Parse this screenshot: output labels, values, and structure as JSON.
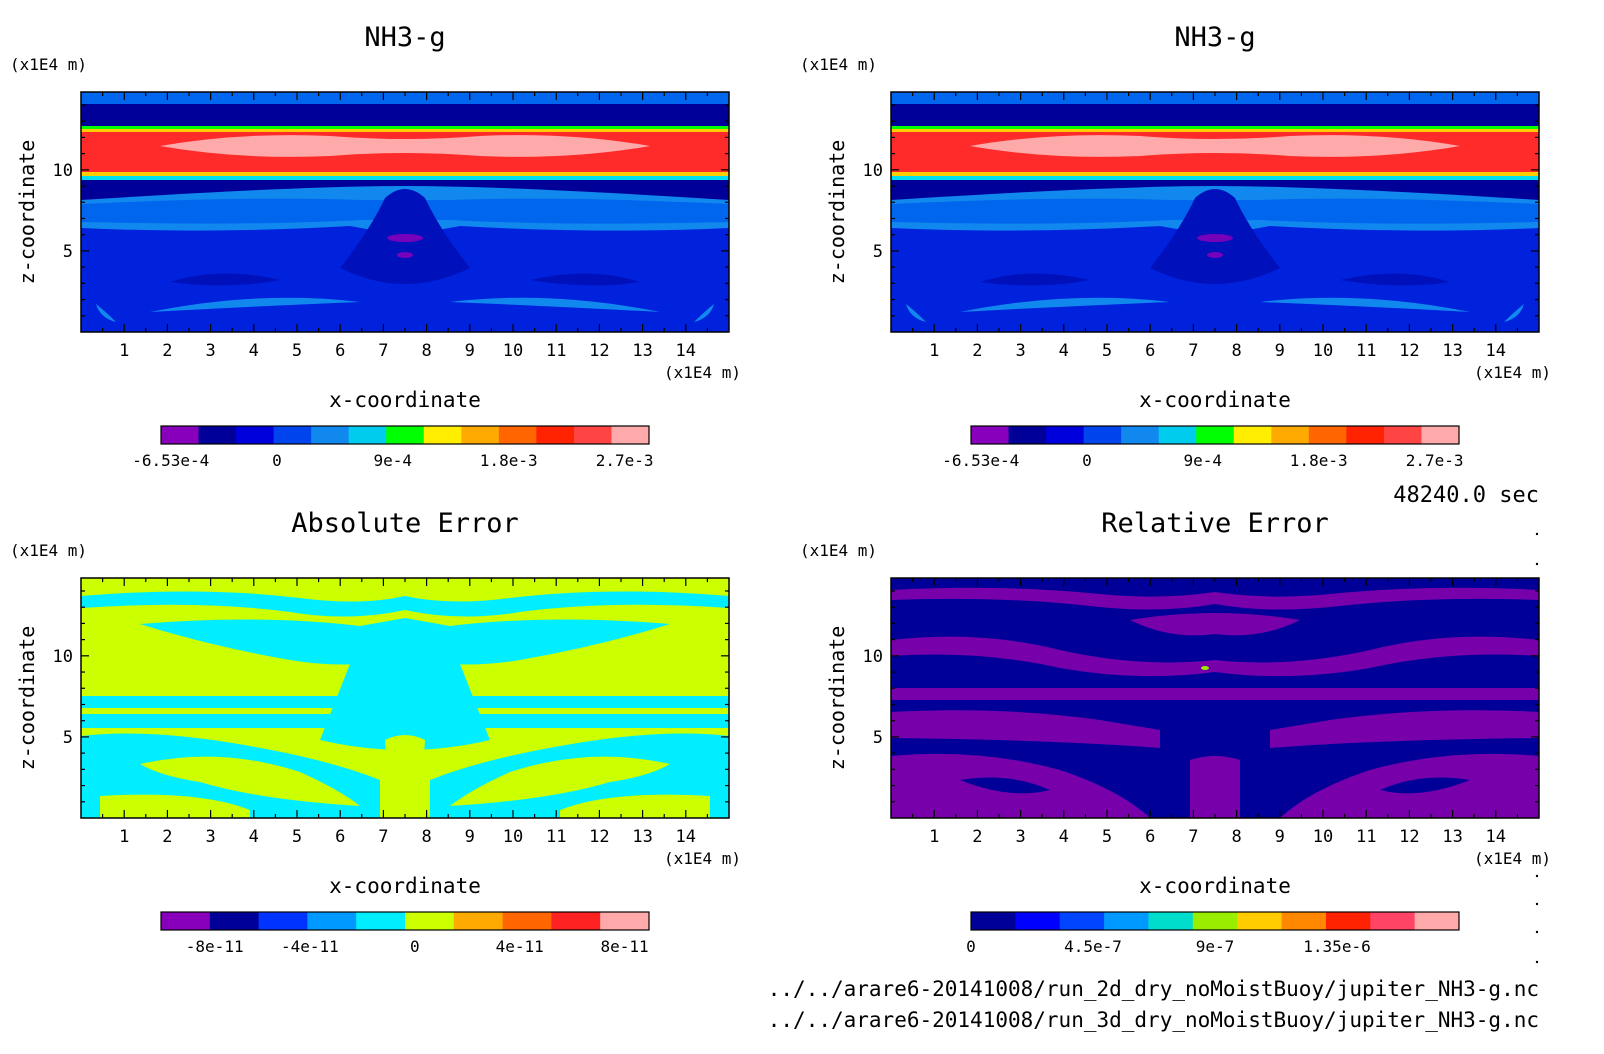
{
  "time_label": "48240.0 sec",
  "files": [
    "../../arare6-20141008/run_2d_dry_noMoistBuoy/jupiter_NH3-g.nc",
    "../../arare6-20141008/run_3d_dry_noMoistBuoy/jupiter_NH3-g.nc"
  ],
  "chart_data": [
    {
      "type": "heatmap",
      "title": "NH3-g",
      "xlabel": "x-coordinate",
      "ylabel": "z-coordinate",
      "x_unit": "(x1E4 m)",
      "y_unit": "(x1E4 m)",
      "xlim": [
        0,
        15
      ],
      "ylim": [
        0,
        14.8
      ],
      "x_ticks": [
        1,
        2,
        3,
        4,
        5,
        6,
        7,
        8,
        9,
        10,
        11,
        12,
        13,
        14
      ],
      "y_ticks": [
        5,
        10
      ],
      "colorbar": {
        "colors": [
          "#8800bb",
          "#000099",
          "#0000dd",
          "#0044ee",
          "#1188ee",
          "#00ccee",
          "#00ff00",
          "#ffee00",
          "#ffaa00",
          "#ff6600",
          "#ff2200",
          "#ff4444",
          "#ffaaaa"
        ],
        "tick_labels": [
          "-6.53e-4",
          "0",
          "9e-4",
          "1.8e-3",
          "2.7e-3"
        ]
      }
    },
    {
      "type": "heatmap",
      "title": "NH3-g",
      "xlabel": "x-coordinate",
      "ylabel": "z-coordinate",
      "x_unit": "(x1E4 m)",
      "y_unit": "(x1E4 m)",
      "xlim": [
        0,
        15
      ],
      "ylim": [
        0,
        14.8
      ],
      "x_ticks": [
        1,
        2,
        3,
        4,
        5,
        6,
        7,
        8,
        9,
        10,
        11,
        12,
        13,
        14
      ],
      "y_ticks": [
        5,
        10
      ],
      "colorbar": {
        "colors": [
          "#8800bb",
          "#000099",
          "#0000dd",
          "#0044ee",
          "#1188ee",
          "#00ccee",
          "#00ff00",
          "#ffee00",
          "#ffaa00",
          "#ff6600",
          "#ff2200",
          "#ff4444",
          "#ffaaaa"
        ],
        "tick_labels": [
          "-6.53e-4",
          "0",
          "9e-4",
          "1.8e-3",
          "2.7e-3"
        ]
      }
    },
    {
      "type": "heatmap",
      "title": "Absolute Error",
      "xlabel": "x-coordinate",
      "ylabel": "z-coordinate",
      "x_unit": "(x1E4 m)",
      "y_unit": "(x1E4 m)",
      "xlim": [
        0,
        15
      ],
      "ylim": [
        0,
        14.8
      ],
      "x_ticks": [
        1,
        2,
        3,
        4,
        5,
        6,
        7,
        8,
        9,
        10,
        11,
        12,
        13,
        14
      ],
      "y_ticks": [
        5,
        10
      ],
      "colorbar": {
        "colors": [
          "#8800bb",
          "#000099",
          "#0033ff",
          "#0099ff",
          "#00eeff",
          "#ccff00",
          "#ffaa00",
          "#ff6600",
          "#ff2222",
          "#ffaaaa"
        ],
        "tick_labels": [
          "-8e-11",
          "-4e-11",
          "0",
          "4e-11",
          "8e-11"
        ]
      }
    },
    {
      "type": "heatmap",
      "title": "Relative Error",
      "xlabel": "x-coordinate",
      "ylabel": "z-coordinate",
      "x_unit": "(x1E4 m)",
      "y_unit": "(x1E4 m)",
      "xlim": [
        0,
        15
      ],
      "ylim": [
        0,
        14.8
      ],
      "x_ticks": [
        1,
        2,
        3,
        4,
        5,
        6,
        7,
        8,
        9,
        10,
        11,
        12,
        13,
        14
      ],
      "y_ticks": [
        5,
        10
      ],
      "colorbar": {
        "colors": [
          "#000099",
          "#0000ff",
          "#0044ff",
          "#0099ff",
          "#00ddcc",
          "#99ee00",
          "#ffcc00",
          "#ff8800",
          "#ff2200",
          "#ff4466",
          "#ffaaaa"
        ],
        "tick_labels": [
          "0",
          "4.5e-7",
          "9e-7",
          "1.35e-6"
        ]
      }
    }
  ]
}
